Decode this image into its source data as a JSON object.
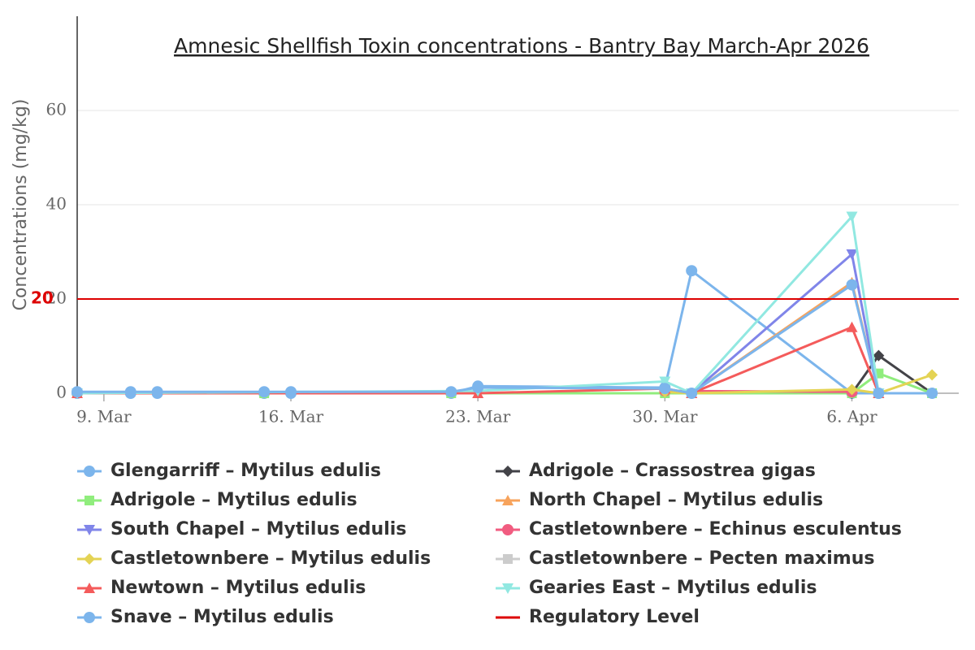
{
  "chart_data": {
    "type": "line",
    "title": "Amnesic Shellfish Toxin concentrations - Bantry Bay March-Apr 2026",
    "y_label": "Concentrations (mg/kg)",
    "xlim": [
      "8. Mar",
      "10. Apr"
    ],
    "xticks": [
      "9. Mar",
      "16. Mar",
      "23. Mar",
      "30. Mar",
      "6. Apr"
    ],
    "ylim": [
      0,
      80
    ],
    "yticks": [
      0,
      20,
      40,
      60
    ],
    "grid": true,
    "series": [
      {
        "name": "Glengarriff – Mytilus edulis",
        "color": "#7cb5ec",
        "marker": "circle",
        "x": [
          "8. Mar",
          "10. Mar",
          "11. Mar",
          "15. Mar",
          "16. Mar",
          "22. Mar",
          "23. Mar",
          "30. Mar",
          "31. Mar",
          "6. Apr",
          "7. Apr"
        ],
        "values": [
          0,
          0,
          0,
          0,
          0,
          0,
          1.5,
          1.2,
          26,
          0,
          0
        ]
      },
      {
        "name": "Adrigole – Crassostrea gigas",
        "color": "#434348",
        "marker": "diamond",
        "x": [
          "6. Apr",
          "7. Apr",
          "9. Apr"
        ],
        "values": [
          0,
          8,
          0
        ]
      },
      {
        "name": "Adrigole – Mytilus edulis",
        "color": "#90ed7d",
        "marker": "square",
        "x": [
          "8. Mar",
          "15. Mar",
          "22. Mar",
          "30. Mar",
          "6. Apr",
          "7. Apr",
          "9. Apr"
        ],
        "values": [
          0,
          0,
          0,
          0,
          0,
          4.2,
          0
        ]
      },
      {
        "name": "North Chapel – Mytilus edulis",
        "color": "#f7a35c",
        "marker": "triangle",
        "x": [
          "31. Mar",
          "6. Apr",
          "7. Apr"
        ],
        "values": [
          0,
          23.5,
          0
        ]
      },
      {
        "name": "South Chapel – Mytilus edulis",
        "color": "#8085e9",
        "marker": "triangle-down",
        "x": [
          "31. Mar",
          "6. Apr",
          "7. Apr"
        ],
        "values": [
          0,
          29.5,
          0
        ]
      },
      {
        "name": "Castletownbere – Echinus esculentus",
        "color": "#f15c80",
        "marker": "circle",
        "x": [
          "30. Mar",
          "6. Apr"
        ],
        "values": [
          0.5,
          0.3
        ]
      },
      {
        "name": "Castletownbere – Mytilus edulis",
        "color": "#e4d354",
        "marker": "diamond",
        "x": [
          "30. Mar",
          "31. Mar",
          "6. Apr",
          "7. Apr",
          "9. Apr"
        ],
        "values": [
          0.3,
          0,
          0.8,
          0,
          3.9
        ]
      },
      {
        "name": "Castletownbere – Pecten maximus",
        "color": "#cccccc",
        "marker": "square",
        "visible": false
      },
      {
        "name": "Newtown – Mytilus edulis",
        "color": "#f45b5b",
        "marker": "triangle",
        "x": [
          "8. Mar",
          "23. Mar",
          "30. Mar",
          "31. Mar",
          "6. Apr",
          "7. Apr"
        ],
        "values": [
          0,
          0,
          1,
          0,
          14,
          0
        ]
      },
      {
        "name": "Gearies East – Mytilus edulis",
        "color": "#91e8e1",
        "marker": "triangle-down",
        "x": [
          "8. Mar",
          "23. Mar",
          "30. Mar",
          "31. Mar",
          "6. Apr",
          "7. Apr"
        ],
        "values": [
          0,
          0.5,
          2.5,
          0,
          37.5,
          0
        ]
      },
      {
        "name": "Snave – Mytilus edulis",
        "color": "#7cb5ec",
        "marker": "circle",
        "x": [
          "8. Mar",
          "10. Mar",
          "11. Mar",
          "15. Mar",
          "16. Mar",
          "22. Mar",
          "23. Mar",
          "30. Mar",
          "31. Mar",
          "6. Apr",
          "7. Apr",
          "9. Apr"
        ],
        "values": [
          0.3,
          0.3,
          0.3,
          0.3,
          0.3,
          0.3,
          1.2,
          1,
          0,
          23,
          0,
          0
        ]
      },
      {
        "name": "Regulatory Level",
        "color": "#dd0000",
        "marker": "plotline",
        "value": 20
      }
    ]
  }
}
